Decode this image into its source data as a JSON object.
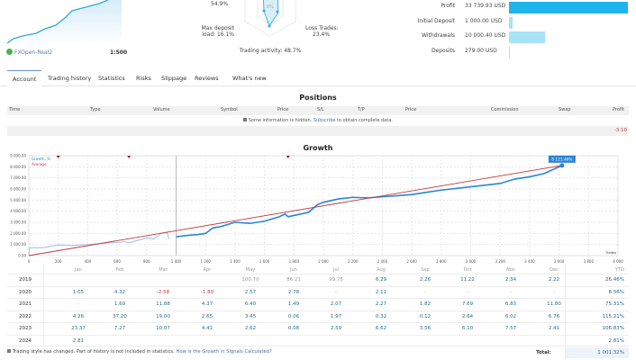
{
  "account": {
    "server": "FXOpen-Real2",
    "leverage": "1:500"
  },
  "radar": {
    "top_value": "54.9%",
    "center": "0%",
    "max_deposit_load": "Max deposit",
    "max_deposit_load2": "load: 16.1%",
    "loss_trades": "Loss Trades:",
    "loss_trades2": "23.4%",
    "trading_activity": "Trading activity: 48.7%"
  },
  "summary": [
    {
      "label": "Profit",
      "value": "33 739.93 USD",
      "fraction": 1.0,
      "color": "#1fb4ea"
    },
    {
      "label": "Initial Deposit",
      "value": "1 000.00 USD",
      "fraction": 0.03,
      "color": "#a8e2f6"
    },
    {
      "label": "Withdrawals",
      "value": "10 000.40 USD",
      "fraction": 0.3,
      "color": "#a8e2f6"
    },
    {
      "label": "Deposits",
      "value": "279.00 USD",
      "fraction": 0.008,
      "color": "#a8e2f6"
    }
  ],
  "tabs": [
    "Account",
    "Trading history",
    "Statistics",
    "Risks",
    "Slippage",
    "Reviews",
    "What's new"
  ],
  "positions": {
    "title": "Positions",
    "columns": [
      "Time",
      "Type",
      "Volume",
      "Symbol",
      "Price",
      "S/L",
      "T/P",
      "Price",
      "Commission",
      "Swap",
      "Profit"
    ],
    "notice_pre": "Some information is hidden.",
    "notice_link": "Subscribe",
    "notice_post": "to obtain complete data.",
    "total_profit": "-3.10"
  },
  "growth": {
    "title": "Growth",
    "legend_growth": "Growth, %",
    "legend_average": "Average",
    "last_label": "8 121.46%",
    "xlabel": "Trades"
  },
  "chart_data": {
    "type": "line",
    "title": "Growth",
    "xlabel": "Trades",
    "xlim": [
      0,
      4000
    ],
    "ylim": [
      0,
      9000
    ],
    "xticks": [
      "0",
      "200",
      "400",
      "600",
      "800",
      "1 000",
      "1 200",
      "1 400",
      "1 600",
      "1 800",
      "2 000",
      "2 200",
      "2 400",
      "2 600",
      "2 800",
      "3 000",
      "3 200",
      "3 400",
      "3 600",
      "3 800",
      "4 000"
    ],
    "yticks": [
      "0.00",
      "1 000.00",
      "2 000.00",
      "3 000.00",
      "4 000.00",
      "5 000.00",
      "6 000.00",
      "7 000.00",
      "8 000.00",
      "9 000.00"
    ],
    "grid": true,
    "legend": "top-left",
    "colors": {
      "growth_history": "#a9c8e8",
      "growth": "#2b84d6",
      "average": "#c0393b"
    },
    "series": [
      {
        "name": "Growth, %",
        "x": [
          0,
          5,
          100,
          200,
          300,
          400,
          500,
          650,
          680,
          800,
          850,
          900,
          940,
          950,
          1000,
          1100,
          1150,
          1200,
          1250,
          1300,
          1400,
          1500,
          1600,
          1700,
          1740,
          1760,
          1900,
          1960,
          2000,
          2100,
          2200,
          2300,
          2400,
          2500,
          2600,
          2700,
          2800,
          3000,
          3200,
          3300,
          3400,
          3500,
          3620
        ],
        "y": [
          0,
          700,
          720,
          950,
          900,
          1000,
          1100,
          1250,
          1150,
          1600,
          1500,
          2000,
          2100,
          1500,
          1700,
          1850,
          1900,
          2000,
          2500,
          2600,
          3000,
          2900,
          3100,
          3500,
          3750,
          3500,
          3900,
          4600,
          4800,
          5100,
          5250,
          5200,
          5300,
          5400,
          5500,
          5700,
          5900,
          6200,
          6500,
          6900,
          7100,
          7400,
          8121.46
        ]
      },
      {
        "name": "Average",
        "x": [
          0,
          3620
        ],
        "y": [
          0,
          8121.46
        ]
      }
    ],
    "markers_x": [
      200,
      680,
      1760
    ],
    "history_cutoff": 1000
  },
  "monthly": {
    "months": [
      "Jan",
      "Feb",
      "Mar",
      "Apr",
      "May",
      "Jun",
      "Jul",
      "Aug",
      "Sep",
      "Oct",
      "Nov",
      "Dec",
      "YTD"
    ],
    "rows": [
      {
        "year": "2019",
        "values": [
          "",
          "",
          "",
          "",
          "100.70",
          "86.21",
          "99.75",
          "6.29",
          "2.26",
          "11.22",
          "2.34",
          "2.22",
          "26.46%"
        ]
      },
      {
        "year": "2020",
        "values": [
          "1.05",
          "4.32",
          "-2.58",
          "-1.80",
          "2.57",
          "2.78",
          "-",
          "2.11",
          "-",
          "-",
          "-",
          "-",
          "8.56%"
        ]
      },
      {
        "year": "2021",
        "values": [
          "-",
          "1.69",
          "11.88",
          "4.37",
          "6.40",
          "1.49",
          "2.07",
          "2.27",
          "1.82",
          "7.69",
          "6.83",
          "11.80",
          "75.31%"
        ]
      },
      {
        "year": "2022",
        "values": [
          "4.26",
          "37.20",
          "19.00",
          "2.65",
          "3.45",
          "0.06",
          "1.97",
          "0.32",
          "0.12",
          "2.64",
          "6.02",
          "6.76",
          "115.21%"
        ]
      },
      {
        "year": "2023",
        "values": [
          "23.37",
          "7.27",
          "10.07",
          "4.41",
          "2.62",
          "0.08",
          "2.59",
          "6.62",
          "3.56",
          "6.10",
          "7.57",
          "2.41",
          "106.83%"
        ]
      },
      {
        "year": "2024",
        "values": [
          "2.81",
          "",
          "",
          "",
          "",
          "",
          "",
          "",
          "",
          "",
          "",
          "",
          "2.81%"
        ]
      }
    ],
    "total_label": "Total:",
    "total_value": "1 001.32%",
    "note": "Trading style has changed. Part of history is not included in statistics.",
    "note_link": "How is the Growth in Signals Calculated?"
  }
}
